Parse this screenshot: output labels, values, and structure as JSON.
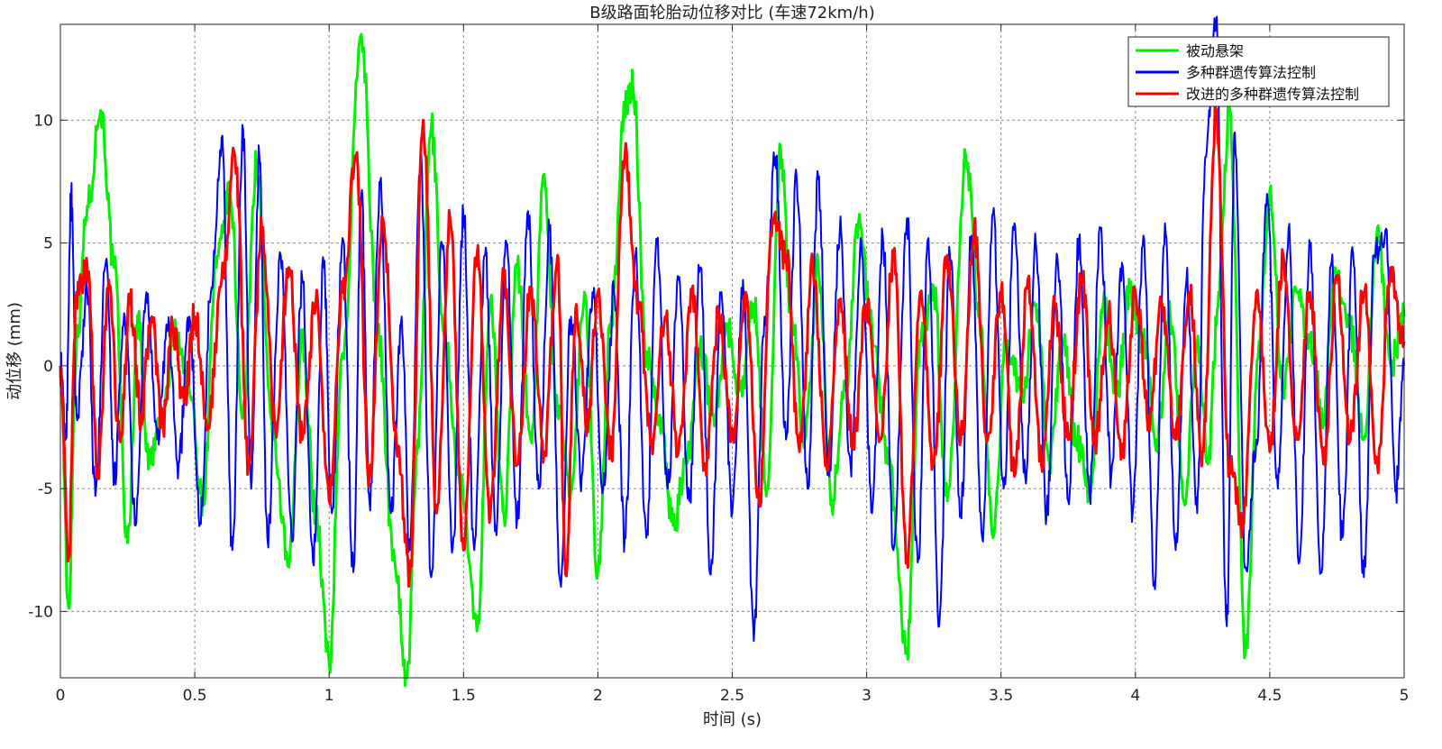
{
  "chart_data": {
    "type": "line",
    "title": "B级路面轮胎动位移对比 (车速72km/h)",
    "xlabel": "时间 (s)",
    "ylabel": "动位移 (mm)",
    "xlim": [
      0,
      5
    ],
    "ylim": [
      -12.7,
      13.9
    ],
    "xticks": [
      0,
      0.5,
      1,
      1.5,
      2,
      2.5,
      3,
      3.5,
      4,
      4.5,
      5
    ],
    "xtick_labels": [
      "0",
      "0.5",
      "1",
      "1.5",
      "2",
      "2.5",
      "3",
      "3.5",
      "4",
      "4.5",
      "5"
    ],
    "yticks": [
      -10,
      -5,
      0,
      5,
      10
    ],
    "ytick_labels": [
      "-10",
      "-5",
      "0",
      "5",
      "10"
    ],
    "grid": true,
    "legend_position": "top-right",
    "series": [
      {
        "name": "被动悬架",
        "color": "#00ee00",
        "x": [
          0,
          0.03,
          0.06,
          0.1,
          0.15,
          0.2,
          0.25,
          0.29,
          0.33,
          0.38,
          0.43,
          0.48,
          0.53,
          0.58,
          0.63,
          0.68,
          0.73,
          0.79,
          0.85,
          0.9,
          0.95,
          1.0,
          1.05,
          1.12,
          1.18,
          1.24,
          1.29,
          1.33,
          1.38,
          1.43,
          1.49,
          1.55,
          1.6,
          1.65,
          1.7,
          1.75,
          1.8,
          1.85,
          1.9,
          1.95,
          2.0,
          2.05,
          2.1,
          2.13,
          2.18,
          2.23,
          2.28,
          2.33,
          2.38,
          2.43,
          2.48,
          2.53,
          2.58,
          2.63,
          2.68,
          2.72,
          2.77,
          2.82,
          2.87,
          2.92,
          2.97,
          3.02,
          3.08,
          3.15,
          3.2,
          3.25,
          3.3,
          3.37,
          3.42,
          3.47,
          3.52,
          3.58,
          3.63,
          3.68,
          3.73,
          3.78,
          3.83,
          3.88,
          3.93,
          3.98,
          4.03,
          4.08,
          4.13,
          4.18,
          4.23,
          4.27,
          4.31,
          4.35,
          4.41,
          4.46,
          4.5,
          4.55,
          4.6,
          4.65,
          4.7,
          4.74,
          4.8,
          4.85,
          4.9,
          4.95,
          5.0
        ],
        "y": [
          0,
          -9.8,
          1,
          6.5,
          10.4,
          4,
          -7.2,
          2,
          -4,
          -2,
          1.5,
          -1,
          -5.5,
          4,
          7,
          -2,
          8.3,
          -3,
          -8.2,
          1,
          -6,
          -12.1,
          0.5,
          13.5,
          1.5,
          -7.5,
          -12.7,
          -3,
          9.7,
          1,
          -5,
          -10.8,
          2.5,
          -6,
          4,
          -3,
          7.8,
          -2,
          -5,
          3,
          -8.4,
          2,
          10.5,
          11.4,
          0.5,
          -2,
          -6.5,
          -4,
          0.8,
          -2,
          1.5,
          -1,
          2.5,
          -5,
          8.8,
          2,
          -3,
          4,
          -5.5,
          -1,
          5.9,
          1.5,
          -4,
          -11.5,
          1,
          3,
          -5.5,
          8.5,
          2,
          -7,
          1,
          -1,
          2.5,
          -4,
          1,
          -3,
          -5,
          2.5,
          -1,
          3,
          1,
          -3,
          2,
          -5.5,
          1,
          -4,
          3,
          10.5,
          -11.6,
          1,
          7.1,
          -1,
          3,
          1,
          -2,
          4,
          1.5,
          -3,
          5.6,
          0,
          2
        ]
      },
      {
        "name": "多种群遗传算法控制",
        "color": "#0000ff",
        "x": [
          0,
          0.02,
          0.04,
          0.06,
          0.1,
          0.13,
          0.17,
          0.2,
          0.24,
          0.28,
          0.32,
          0.36,
          0.4,
          0.44,
          0.48,
          0.52,
          0.56,
          0.6,
          0.64,
          0.68,
          0.71,
          0.74,
          0.77,
          0.82,
          0.86,
          0.9,
          0.94,
          0.98,
          1.01,
          1.05,
          1.09,
          1.12,
          1.15,
          1.19,
          1.23,
          1.27,
          1.3,
          1.34,
          1.38,
          1.42,
          1.46,
          1.5,
          1.54,
          1.58,
          1.62,
          1.66,
          1.7,
          1.74,
          1.78,
          1.82,
          1.86,
          1.9,
          1.94,
          1.98,
          2.02,
          2.06,
          2.1,
          2.14,
          2.18,
          2.22,
          2.26,
          2.3,
          2.34,
          2.38,
          2.42,
          2.46,
          2.5,
          2.54,
          2.58,
          2.62,
          2.66,
          2.7,
          2.74,
          2.78,
          2.82,
          2.86,
          2.9,
          2.94,
          2.98,
          3.02,
          3.06,
          3.1,
          3.15,
          3.19,
          3.23,
          3.27,
          3.31,
          3.35,
          3.39,
          3.43,
          3.47,
          3.51,
          3.55,
          3.59,
          3.63,
          3.67,
          3.71,
          3.75,
          3.79,
          3.83,
          3.87,
          3.91,
          3.95,
          3.99,
          4.03,
          4.07,
          4.11,
          4.15,
          4.19,
          4.23,
          4.26,
          4.3,
          4.34,
          4.37,
          4.41,
          4.45,
          4.49,
          4.53,
          4.57,
          4.61,
          4.65,
          4.69,
          4.73,
          4.77,
          4.81,
          4.85,
          4.89,
          4.93,
          4.97,
          5.0
        ],
        "y": [
          0,
          -3,
          6.9,
          -2,
          3,
          -5.3,
          4.3,
          -4.5,
          2,
          -6.5,
          3,
          -3,
          1.5,
          -4,
          2,
          -6.4,
          3,
          9.3,
          -7.5,
          9.6,
          -5,
          8.6,
          -7,
          4.5,
          -7,
          3.5,
          -8,
          4,
          -6,
          5.2,
          -8.4,
          7,
          -5.5,
          7.5,
          -6,
          2,
          -7.5,
          8.3,
          -8.6,
          5,
          -7.4,
          6.1,
          -7.5,
          4.5,
          -6.5,
          5,
          -6.2,
          6.3,
          -5,
          5.5,
          -8.8,
          2,
          -4.5,
          3,
          -5,
          3,
          -7,
          4.5,
          -7,
          5,
          -5,
          3.5,
          -5.5,
          4,
          -8.5,
          3,
          -6,
          3.5,
          -11.2,
          2,
          8.5,
          -3,
          7.6,
          -5,
          7.6,
          -4.5,
          5.5,
          -4,
          5.1,
          -6,
          5.3,
          -7.5,
          6,
          -8,
          5.2,
          -10.6,
          4.5,
          -6,
          5.3,
          -7,
          6.2,
          -5,
          5.8,
          -4.5,
          4.9,
          -6,
          4.4,
          -5.5,
          5.1,
          -5.3,
          5.6,
          -4.5,
          4.2,
          -6,
          5.3,
          -8.8,
          5.8,
          -7.5,
          3.5,
          -6,
          8.5,
          13.9,
          -10.6,
          9.5,
          -8.2,
          -3,
          7,
          -5,
          5.6,
          -8,
          4.8,
          -8.4,
          4.2,
          -7,
          4.6,
          -8.6,
          4.5,
          5.5,
          -5,
          0
        ]
      },
      {
        "name": "改进的多种群遗传算法控制",
        "color": "#ff0000",
        "x": [
          0,
          0.03,
          0.06,
          0.1,
          0.14,
          0.18,
          0.22,
          0.26,
          0.3,
          0.34,
          0.38,
          0.42,
          0.46,
          0.5,
          0.55,
          0.6,
          0.65,
          0.7,
          0.75,
          0.8,
          0.85,
          0.9,
          0.95,
          1.0,
          1.05,
          1.1,
          1.15,
          1.2,
          1.25,
          1.3,
          1.35,
          1.4,
          1.45,
          1.5,
          1.55,
          1.6,
          1.65,
          1.7,
          1.75,
          1.8,
          1.85,
          1.88,
          1.92,
          1.96,
          2.0,
          2.05,
          2.1,
          2.15,
          2.2,
          2.25,
          2.3,
          2.35,
          2.4,
          2.45,
          2.5,
          2.55,
          2.6,
          2.65,
          2.7,
          2.75,
          2.8,
          2.85,
          2.9,
          2.95,
          3.0,
          3.05,
          3.1,
          3.15,
          3.2,
          3.25,
          3.3,
          3.35,
          3.4,
          3.45,
          3.5,
          3.55,
          3.6,
          3.65,
          3.7,
          3.75,
          3.8,
          3.85,
          3.9,
          3.95,
          4.0,
          4.05,
          4.1,
          4.15,
          4.2,
          4.25,
          4.3,
          4.35,
          4.4,
          4.45,
          4.5,
          4.55,
          4.6,
          4.65,
          4.7,
          4.75,
          4.8,
          4.85,
          4.9,
          4.95,
          5.0
        ],
        "y": [
          0,
          -7.8,
          3,
          4,
          -4.5,
          3.5,
          -3,
          2.5,
          -2,
          2,
          -2.5,
          1.5,
          -1.5,
          2,
          -2.5,
          3.5,
          8.5,
          -4,
          5.5,
          -2.5,
          4,
          -3,
          2.5,
          -5.5,
          3,
          8.5,
          -4.5,
          6,
          -3,
          -8.5,
          10,
          -6,
          6,
          -7.5,
          4.5,
          -6,
          3.5,
          -4,
          3,
          -3.5,
          4.5,
          -8.5,
          2.5,
          -2.5,
          3,
          -3.5,
          8.5,
          2.5,
          -3,
          2,
          -3.5,
          3,
          -4,
          2,
          -3,
          3,
          -5.5,
          6,
          4.5,
          -3.5,
          4,
          -4,
          2.5,
          -3,
          2.5,
          -3,
          4.5,
          -7.8,
          3,
          -4,
          4.5,
          -3,
          5.5,
          -3,
          3,
          -4.5,
          3.5,
          -4,
          2.5,
          -3,
          3.5,
          -3,
          2,
          -3.5,
          3,
          -2,
          2.5,
          -3,
          3,
          -3.5,
          10.2,
          -4,
          -6.5,
          3,
          -3.5,
          4.5,
          -3,
          3,
          -4,
          3.5,
          -3,
          3,
          -4,
          4,
          1
        ]
      }
    ]
  }
}
